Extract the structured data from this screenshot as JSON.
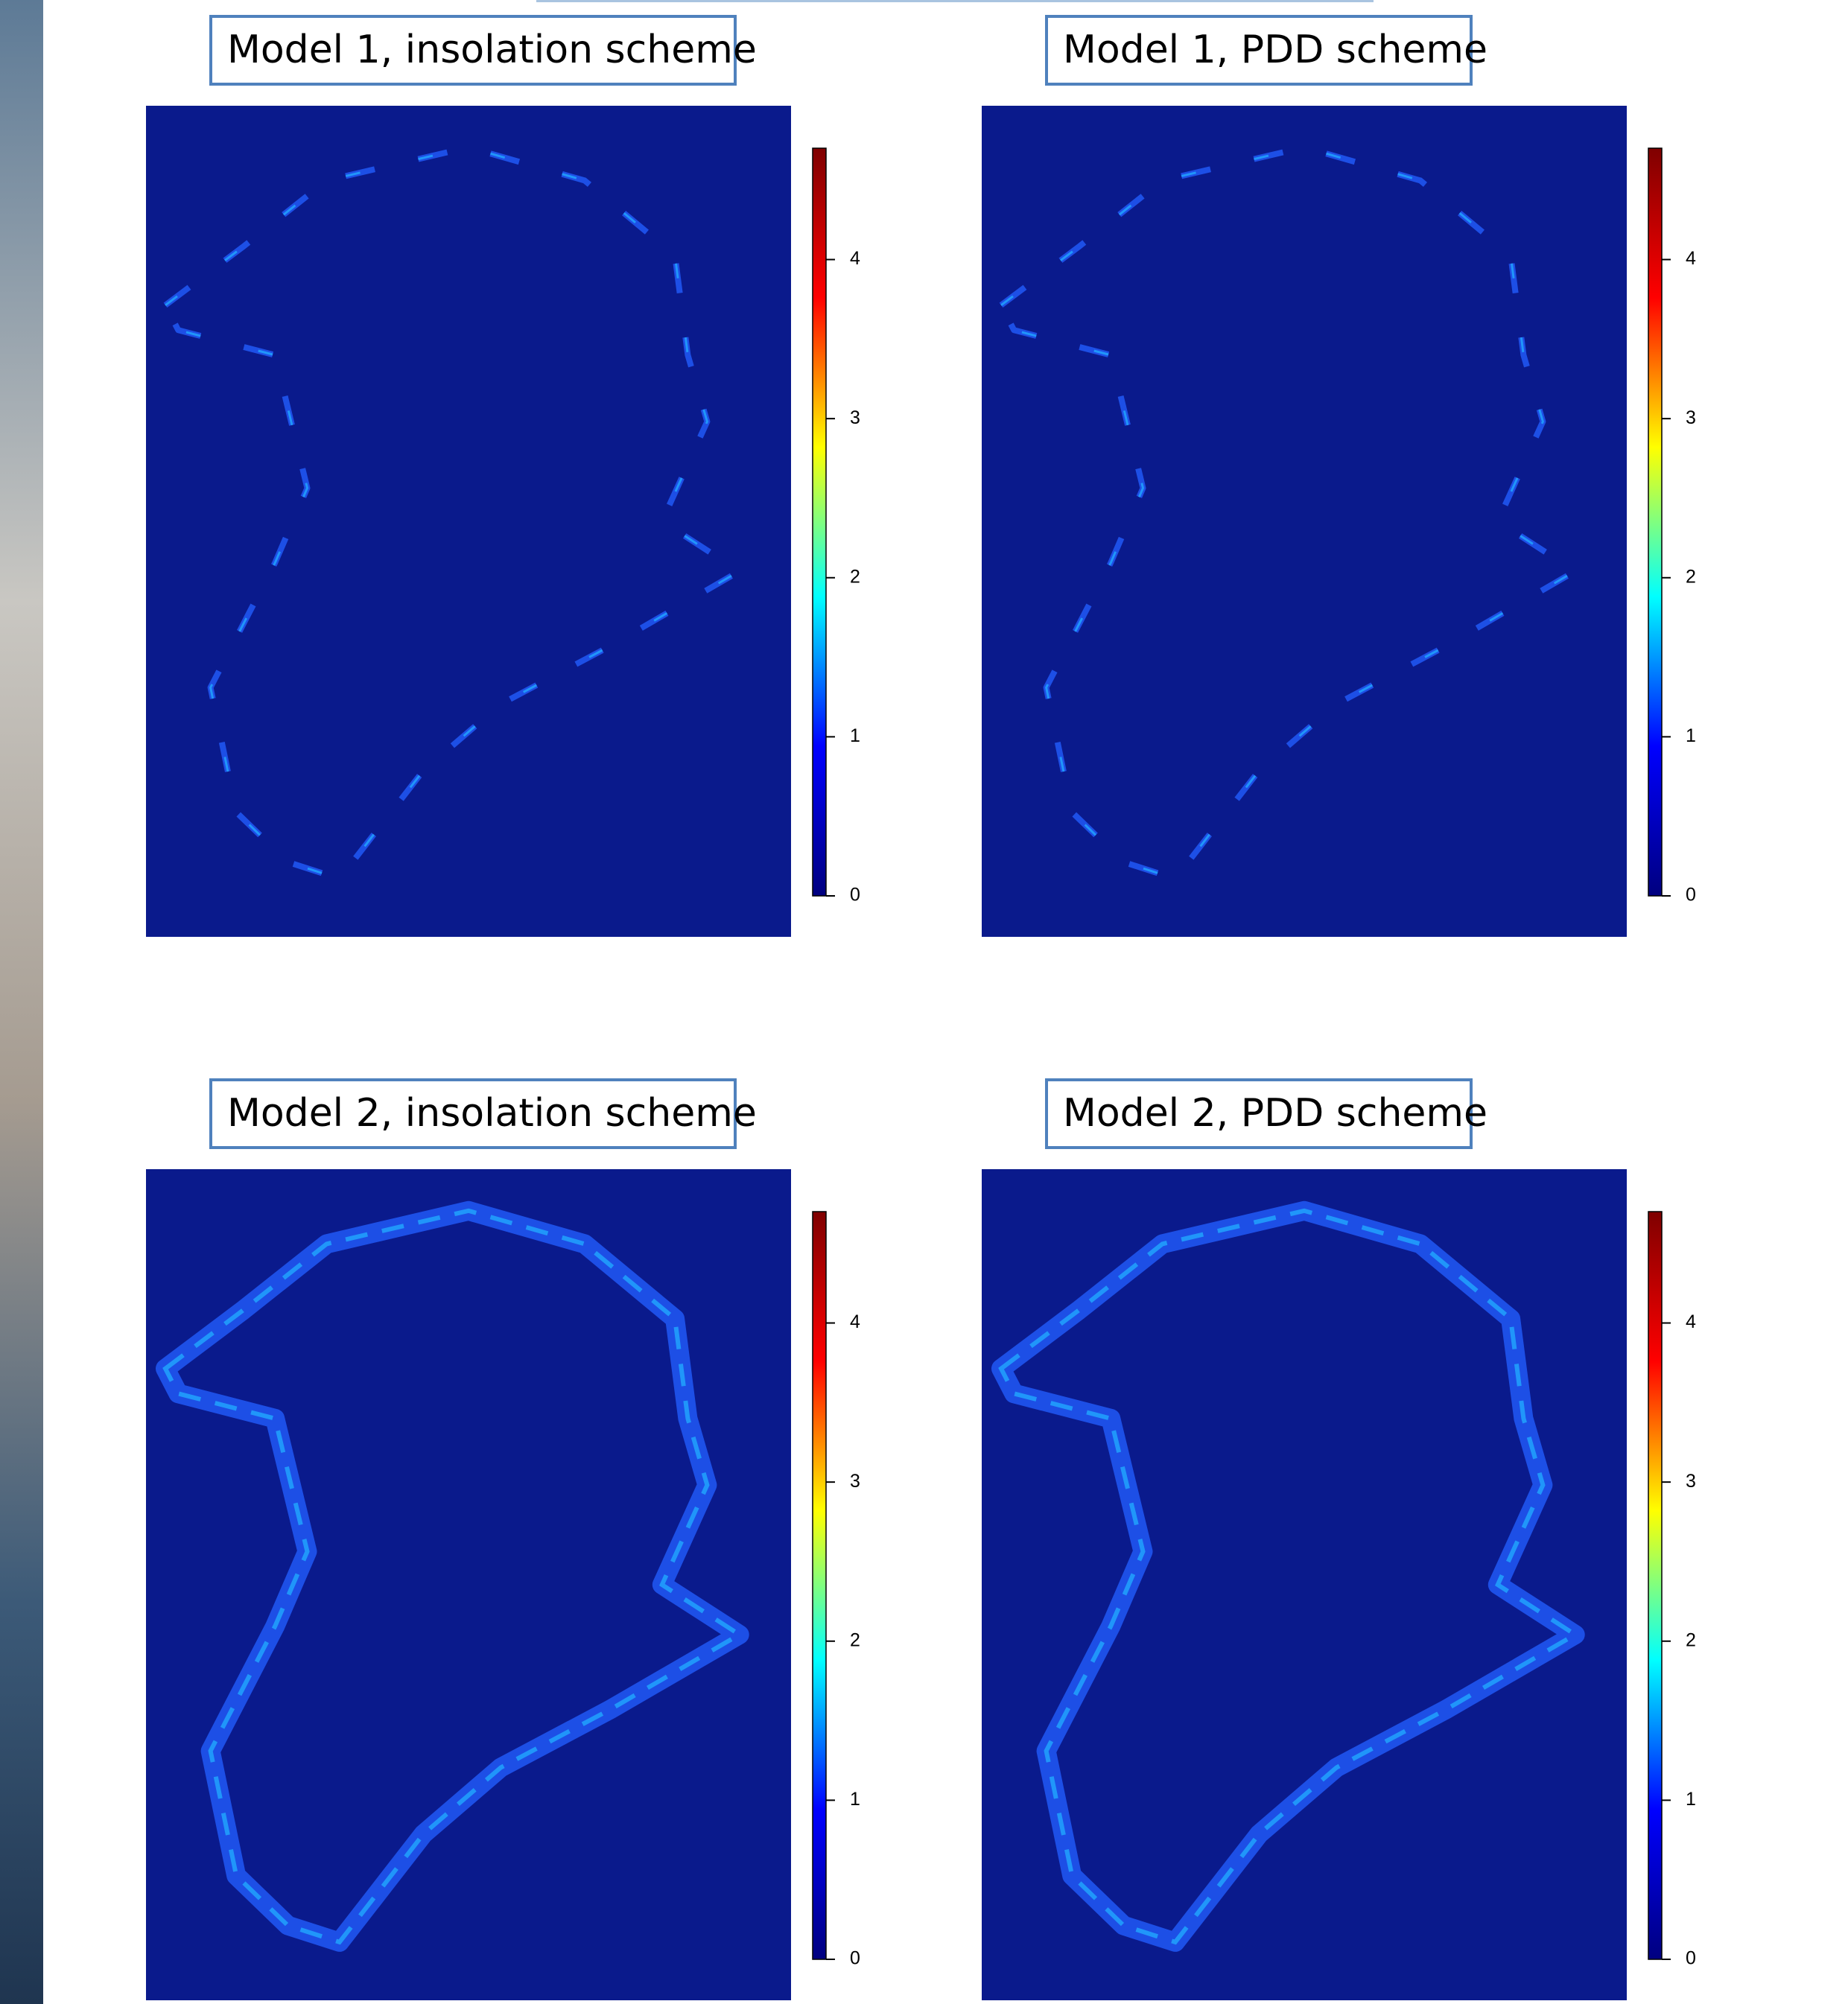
{
  "chart_data": [
    {
      "type": "heatmap",
      "title": "Model 1, insolation scheme",
      "zlim": [
        0,
        4.7
      ],
      "zticks": [
        0,
        1,
        2,
        3,
        4
      ],
      "colors": [
        "#00007f",
        "#0000ff",
        "#00ffff",
        "#ffff00",
        "#ff0000",
        "#7f0000"
      ]
    },
    {
      "type": "heatmap",
      "title": "Model 1, PDD scheme",
      "zlim": [
        0,
        4.7
      ],
      "zticks": [
        0,
        1,
        2,
        3,
        4
      ],
      "colors": [
        "#00007f",
        "#0000ff",
        "#00ffff",
        "#ffff00",
        "#ff0000",
        "#7f0000"
      ]
    },
    {
      "type": "heatmap",
      "title": "Model 2, insolation scheme",
      "zlim": [
        0,
        4.7
      ],
      "zticks": [
        0,
        1,
        2,
        3,
        4
      ],
      "colors": [
        "#00007f",
        "#0000ff",
        "#00ffff",
        "#ffff00",
        "#ff0000",
        "#7f0000"
      ]
    },
    {
      "type": "heatmap",
      "title": "Model 2, PDD scheme",
      "zlim": [
        0,
        4.7
      ],
      "zticks": [
        0,
        1,
        2,
        3,
        4
      ],
      "colors": [
        "#00007f",
        "#0000ff",
        "#00ffff",
        "#ffff00",
        "#ff0000",
        "#7f0000"
      ]
    }
  ]
}
